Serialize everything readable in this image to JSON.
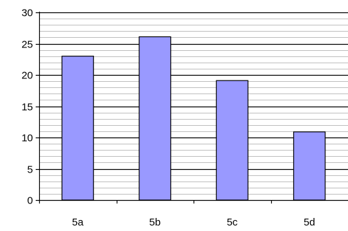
{
  "chart_data": {
    "type": "bar",
    "title": "",
    "xlabel": "",
    "ylabel": "",
    "categories": [
      "5a",
      "5b",
      "5c",
      "5d"
    ],
    "values": [
      23,
      26.1,
      19.1,
      10.9
    ],
    "ylim": [
      0,
      30
    ],
    "y_ticks": [
      "0",
      "5",
      "10",
      "15",
      "20",
      "25",
      "30"
    ],
    "grid": true,
    "legend": "none",
    "colors": {
      "bar_fill": "#9999ff",
      "bar_stroke": "#000000",
      "major_grid": "#000000",
      "minor_grid": "#808080",
      "axis": "#000000"
    }
  }
}
